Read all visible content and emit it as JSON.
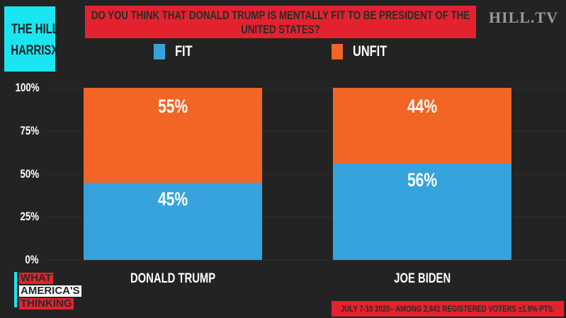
{
  "source": {
    "line1": "THE HILL/",
    "line2": "HARRISX"
  },
  "logo": "HILL.TV",
  "branding": {
    "line1": "WHAT",
    "line2": "AMERICA'S",
    "line3": "THINKING"
  },
  "footnote": "JULY 7-10 2020– AMONG 2,841 REGISTERED VOTERS ±1.9% PTS.",
  "colors": {
    "fit": "#36a3dc",
    "unfit": "#f26524",
    "title_bg": "#e4222f",
    "source_bg": "#19e6f0",
    "background": "#232323"
  },
  "chart_data": {
    "type": "bar",
    "stacked": true,
    "title": "DO YOU THINK THAT DONALD TRUMP IS MENTALLY FIT TO BE PRESIDENT OF THE UNITED STATES?",
    "categories": [
      "DONALD TRUMP",
      "JOE BIDEN"
    ],
    "series": [
      {
        "name": "FIT",
        "values": [
          45,
          56
        ],
        "labels": [
          "45%",
          "56%"
        ]
      },
      {
        "name": "UNFIT",
        "values": [
          55,
          44
        ],
        "labels": [
          "55%",
          "44%"
        ]
      }
    ],
    "yticks": [
      "0%",
      "25%",
      "50%",
      "75%",
      "100%"
    ],
    "ylim": [
      0,
      100
    ],
    "legend": "top",
    "grid": true
  }
}
